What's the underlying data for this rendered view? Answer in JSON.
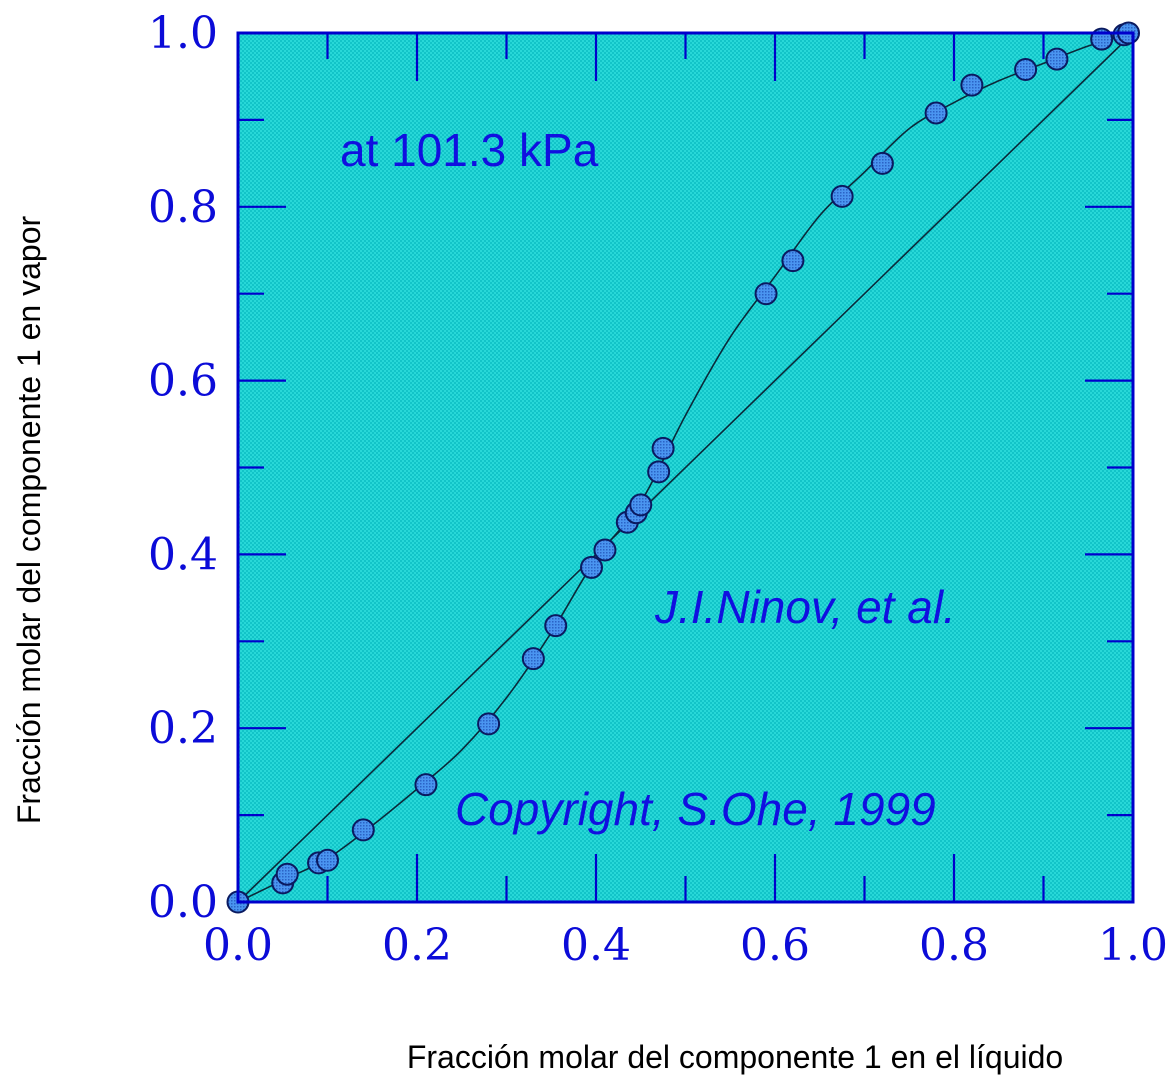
{
  "chart_data": {
    "type": "scatter",
    "title": "",
    "xlabel": "Fracción molar del componente 1 en el líquido",
    "ylabel": "Fracción molar del componente 1 en vapor",
    "xlim": [
      0.0,
      1.0
    ],
    "ylim": [
      0.0,
      1.0
    ],
    "x_tick_labels": [
      "0.0",
      "0.2",
      "0.4",
      "0.6",
      "0.8",
      "1.0"
    ],
    "y_tick_labels": [
      "0.0",
      "0.2",
      "0.4",
      "0.6",
      "0.8",
      "1.0"
    ],
    "grid": false,
    "colors": {
      "plot_background": "#22d6d6",
      "frame": "#0000cc",
      "marker": "#3a86e6",
      "marker_edge": "#0a1a60",
      "tick_text": "#0b0bd8",
      "annotation_text": "#1010e0"
    },
    "annotations": [
      "at 101.3 kPa",
      "J.I.Ninov, et al.",
      "Copyright, S.Ohe, 1999"
    ],
    "diagonal": [
      [
        0.0,
        0.0
      ],
      [
        1.0,
        1.0
      ]
    ],
    "series": [
      {
        "kind": "points",
        "x": [
          0.0,
          0.05,
          0.055,
          0.09,
          0.1,
          0.14,
          0.21,
          0.28,
          0.33,
          0.355,
          0.395,
          0.41,
          0.435,
          0.445,
          0.45,
          0.47,
          0.475,
          0.59,
          0.62,
          0.675,
          0.72,
          0.78,
          0.82,
          0.88,
          0.915,
          0.965,
          0.99,
          0.995
        ],
        "y": [
          0.0,
          0.022,
          0.032,
          0.045,
          0.048,
          0.083,
          0.135,
          0.205,
          0.28,
          0.318,
          0.385,
          0.405,
          0.437,
          0.448,
          0.457,
          0.495,
          0.522,
          0.7,
          0.738,
          0.812,
          0.85,
          0.908,
          0.94,
          0.958,
          0.97,
          0.993,
          0.998,
          1.0
        ]
      },
      {
        "kind": "fit-curve",
        "x": [
          0.0,
          0.05,
          0.1,
          0.15,
          0.2,
          0.25,
          0.3,
          0.35,
          0.4,
          0.45,
          0.5,
          0.55,
          0.6,
          0.65,
          0.7,
          0.75,
          0.8,
          0.85,
          0.9,
          0.95,
          1.0
        ],
        "y": [
          0.0,
          0.025,
          0.05,
          0.088,
          0.13,
          0.175,
          0.235,
          0.31,
          0.395,
          0.46,
          0.56,
          0.65,
          0.72,
          0.79,
          0.84,
          0.89,
          0.92,
          0.945,
          0.965,
          0.985,
          1.0
        ]
      }
    ]
  }
}
